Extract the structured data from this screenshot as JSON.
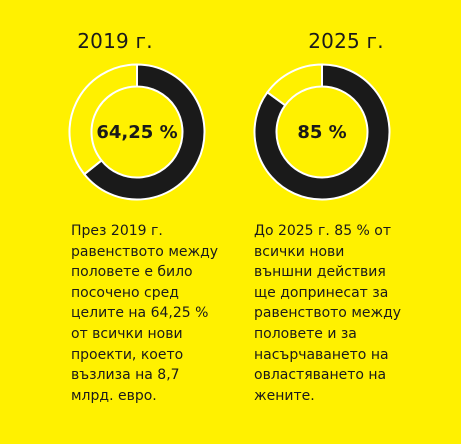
{
  "colors": {
    "background": "#FFF100",
    "filled": "#1a1a1a",
    "remainder_stroke": "#ffffff"
  },
  "chart_data": [
    {
      "type": "pie",
      "title": "2019 г.",
      "value_label": "64,25 %",
      "slices": [
        {
          "value": 64.25,
          "color": "#1a1a1a"
        },
        {
          "value": 35.75,
          "color": "#FFF100"
        }
      ],
      "description": "През 2019 г. равенството между половете е било посочено сред целите на 64,25 % от всички нови проекти, което възлиза на 8,7 млрд. евро."
    },
    {
      "type": "pie",
      "title": "2025 г.",
      "value_label": "85 %",
      "slices": [
        {
          "value": 85,
          "color": "#1a1a1a"
        },
        {
          "value": 15,
          "color": "#FFF100"
        }
      ],
      "description": "До 2025 г. 85 % от всички нови външни действия ще допринесат за равенството между половете и за насърчаването на овластяването на жените."
    }
  ]
}
